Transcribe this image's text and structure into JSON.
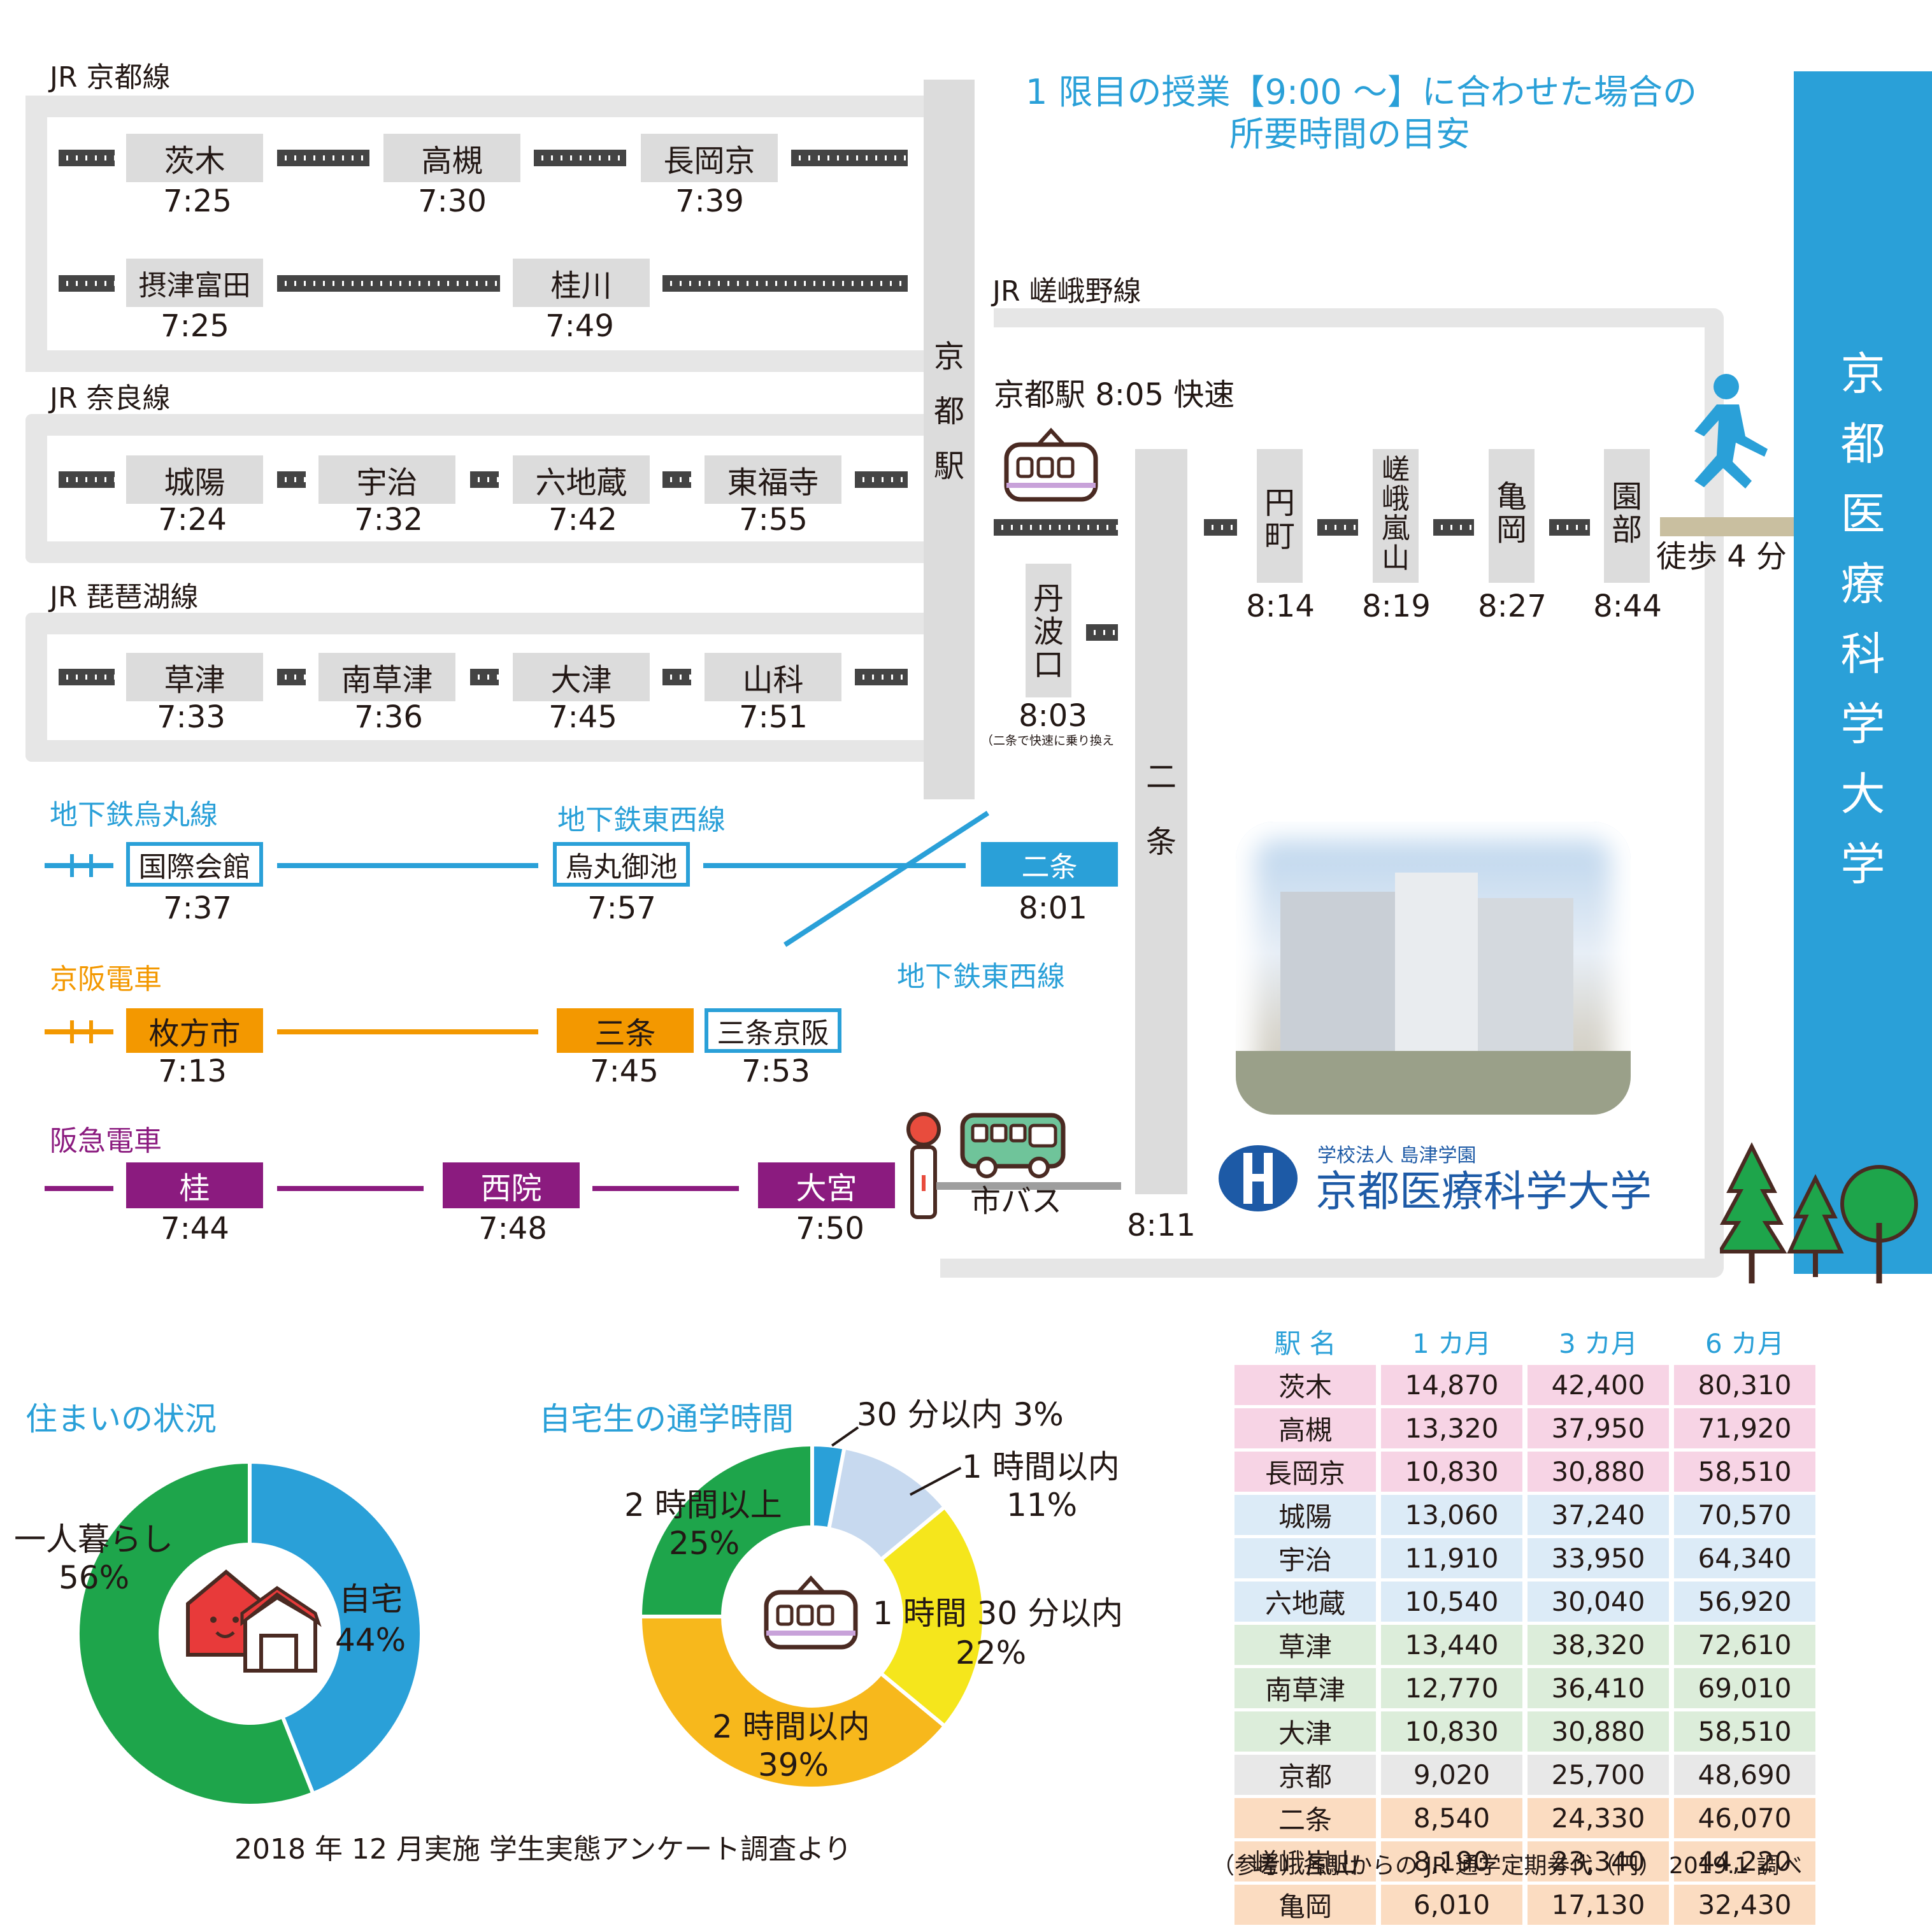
{
  "header": {
    "title_line1": "1 限目の授業【9:00 ～】に合わせた場合の",
    "title_line2": "所要時間の目安"
  },
  "university": {
    "vertical_name": [
      "京",
      "都",
      "医",
      "療",
      "科",
      "学",
      "大",
      "学"
    ],
    "logo_sub": "学校法人 島津学園",
    "logo_name": "京都医療科学大学",
    "walk": "徒歩 4 分"
  },
  "hubs": {
    "kyoto_station": [
      "京",
      "都",
      "駅"
    ],
    "nijo": [
      "二",
      "条"
    ],
    "nijo_time": "8:11",
    "tanbaguchi": [
      "丹",
      "波",
      "口"
    ],
    "tanbaguchi_time": "8:03",
    "tanbaguchi_note": "（二条で快速に乗り換え",
    "city_bus": "市バス"
  },
  "lines": {
    "jr_kyoto": {
      "name": "JR 京都線",
      "row1": [
        {
          "station": "茨木",
          "time": "7:25"
        },
        {
          "station": "高槻",
          "time": "7:30"
        },
        {
          "station": "長岡京",
          "time": "7:39"
        }
      ],
      "row2": [
        {
          "station": "摂津富田",
          "time": "7:25"
        },
        {
          "station": "桂川",
          "time": "7:49"
        }
      ]
    },
    "jr_nara": {
      "name": "JR 奈良線",
      "stations": [
        {
          "station": "城陽",
          "time": "7:24"
        },
        {
          "station": "宇治",
          "time": "7:32"
        },
        {
          "station": "六地蔵",
          "time": "7:42"
        },
        {
          "station": "東福寺",
          "time": "7:55"
        }
      ]
    },
    "jr_biwako": {
      "name": "JR 琵琶湖線",
      "stations": [
        {
          "station": "草津",
          "time": "7:33"
        },
        {
          "station": "南草津",
          "time": "7:36"
        },
        {
          "station": "大津",
          "time": "7:45"
        },
        {
          "station": "山科",
          "time": "7:51"
        }
      ]
    },
    "jr_sagano": {
      "name": "JR 嵯峨野線",
      "departure": "京都駅 8:05 快速",
      "stations": [
        {
          "station": [
            "円",
            "町"
          ],
          "time": "8:14"
        },
        {
          "station": [
            "嵯",
            "峨",
            "嵐",
            "山"
          ],
          "time": "8:19"
        },
        {
          "station": [
            "亀",
            "岡"
          ],
          "time": "8:27"
        },
        {
          "station": [
            "園",
            "部"
          ],
          "time": "8:44"
        }
      ]
    },
    "subway": {
      "name_karasuma": "地下鉄烏丸線",
      "name_tozai": "地下鉄東西線",
      "name_tozai2": "地下鉄東西線",
      "stations": [
        {
          "station": "国際会館",
          "time": "7:37"
        },
        {
          "station": "烏丸御池",
          "time": "7:57"
        },
        {
          "station": "二条",
          "time": "8:01"
        }
      ]
    },
    "keihan": {
      "name": "京阪電車",
      "stations": [
        {
          "station": "枚方市",
          "time": "7:13"
        },
        {
          "station": "三条",
          "time": "7:45"
        },
        {
          "station": "三条京阪",
          "time": "7:53"
        }
      ]
    },
    "hankyu": {
      "name": "阪急電車",
      "stations": [
        {
          "station": "桂",
          "time": "7:44"
        },
        {
          "station": "西院",
          "time": "7:48"
        },
        {
          "station": "大宮",
          "time": "7:50"
        }
      ]
    }
  },
  "colors": {
    "blue": "#2aa0d8",
    "orange": "#f39800",
    "purple": "#8b1b7f",
    "green": "#1ea54b",
    "yellow": "#f5e61c",
    "amber": "#f7b81c",
    "light_blue": "#c7d9ef"
  },
  "chart_data": [
    {
      "type": "pie",
      "title": "住まいの状況",
      "categories": [
        "自宅",
        "一人暮らし"
      ],
      "values": [
        44,
        56
      ],
      "labels": [
        "自宅\n44%",
        "一人暮らし\n56%"
      ],
      "colors": [
        "#2aa0d8",
        "#1ea54b"
      ]
    },
    {
      "type": "pie",
      "title": "自宅生の通学時間",
      "categories": [
        "30 分以内",
        "1 時間以内",
        "1 時間 30 分以内",
        "2 時間以内",
        "2 時間以上"
      ],
      "values": [
        3,
        11,
        22,
        39,
        25
      ],
      "colors": [
        "#2aa0d8",
        "#c7d9ef",
        "#f5e61c",
        "#f7b81c",
        "#1ea54b"
      ]
    }
  ],
  "pie_labels": {
    "home": "自宅",
    "home_pct": "44%",
    "alone": "一人暮らし",
    "alone_pct": "56%",
    "c30": "30 分以内 3%",
    "c1h": "1 時間以内",
    "c1h_pct": "11%",
    "c130": "1 時間 30 分以内",
    "c130_pct": "22%",
    "c2h": "2 時間以内",
    "c2h_pct": "39%",
    "c2hp": "2 時間以上",
    "c2hp_pct": "25%"
  },
  "survey_note": "2018 年 12 月実施  学生実態アンケート調査より",
  "fare_table": {
    "headers": [
      "駅 名",
      "1 カ月",
      "3 カ月",
      "6 カ月"
    ],
    "rows": [
      [
        "茨木",
        "14,870",
        "42,400",
        "80,310"
      ],
      [
        "高槻",
        "13,320",
        "37,950",
        "71,920"
      ],
      [
        "長岡京",
        "10,830",
        "30,880",
        "58,510"
      ],
      [
        "城陽",
        "13,060",
        "37,240",
        "70,570"
      ],
      [
        "宇治",
        "11,910",
        "33,950",
        "64,340"
      ],
      [
        "六地蔵",
        "10,540",
        "30,040",
        "56,920"
      ],
      [
        "草津",
        "13,440",
        "38,320",
        "72,610"
      ],
      [
        "南草津",
        "12,770",
        "36,410",
        "69,010"
      ],
      [
        "大津",
        "10,830",
        "30,880",
        "58,510"
      ],
      [
        "京都",
        "9,020",
        "25,700",
        "48,690"
      ],
      [
        "二条",
        "8,540",
        "24,330",
        "46,070"
      ],
      [
        "嵯峨嵐山",
        "8,190",
        "23,340",
        "44,220"
      ],
      [
        "亀岡",
        "6,010",
        "17,130",
        "32,430"
      ]
    ],
    "caption": "（参考）各駅からの JR 通学定期券代（円）  2019.1 調べ"
  }
}
